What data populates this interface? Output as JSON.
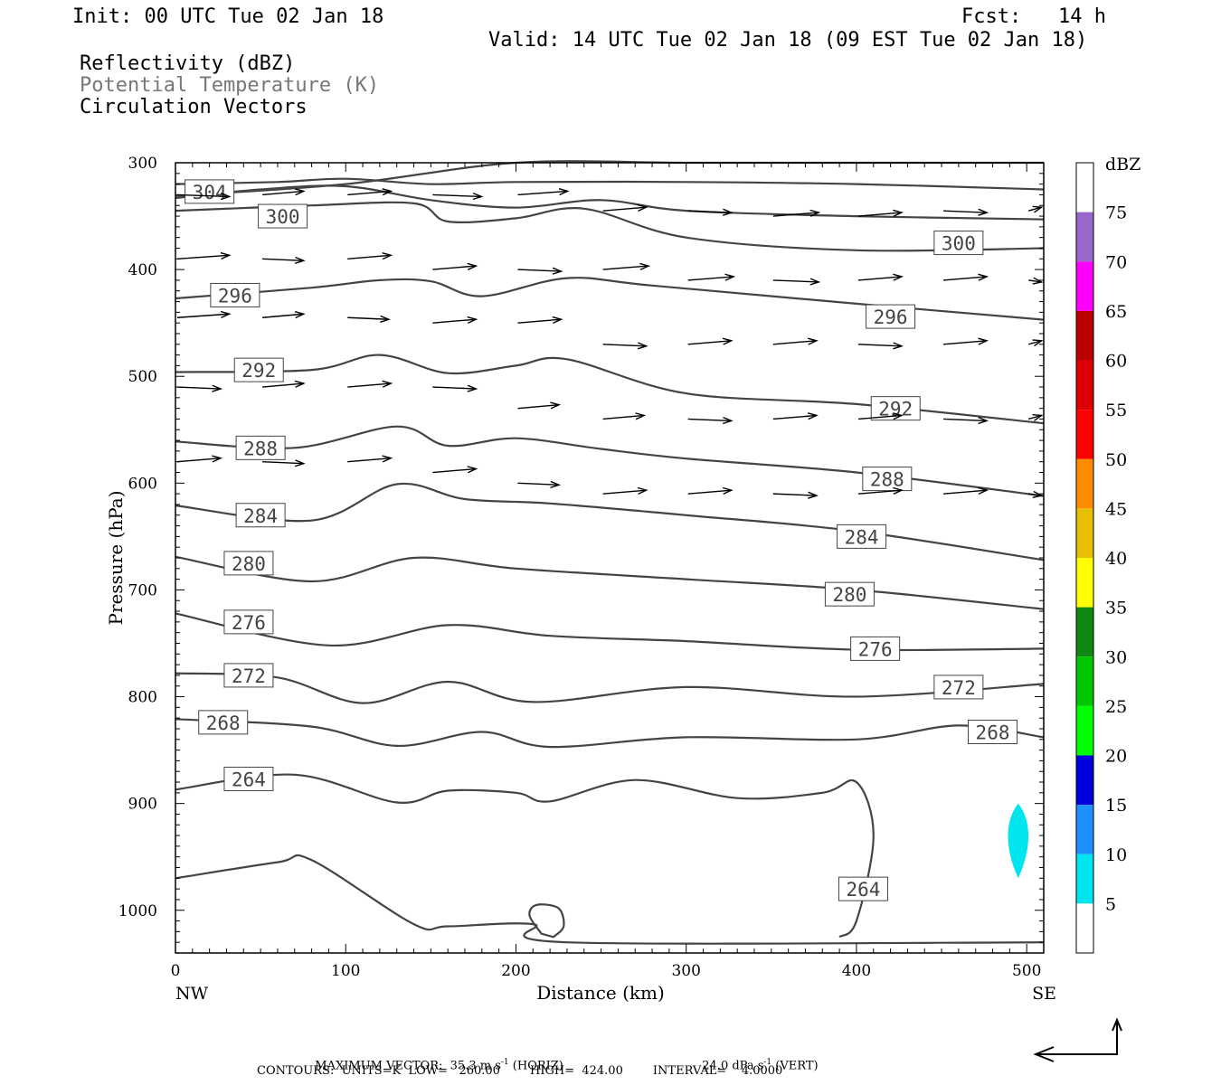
{
  "header": {
    "init": "Init: 00 UTC Tue 02 Jan 18",
    "fcst_label": "Fcst:",
    "fcst_value": "14 h",
    "valid": "Valid: 14 UTC Tue 02 Jan 18 (09 EST Tue 02 Jan 18)",
    "field1": "Reflectivity (dBZ)",
    "field2": "Potential Temperature (K)",
    "field3": "Circulation Vectors"
  },
  "footer": {
    "max_vector": "MAXIMUM VECTOR:  35.3 m s",
    "max_vector_exp": "-1",
    "max_vector_horiz": " (HORIZ)",
    "max_vector_vert": "24.0 dPa s",
    "max_vector_vert_exp": "-1",
    "max_vector_vert_tail": " (VERT)",
    "contours": "CONTOURS:  UNITS=K  LOW=   260.00        HIGH=  424.00        INTERVAL=    4.0000"
  },
  "colors": {
    "contour": "#444444",
    "axis": "#000000",
    "echo": "#00e5ee"
  },
  "chart_data": {
    "type": "cross-section",
    "xlabel": "Distance (km)",
    "ylabel": "Pressure (hPa)",
    "xlim": [
      0,
      510
    ],
    "ylim": [
      1040,
      300
    ],
    "x_ticks": [
      "0",
      "100",
      "200",
      "300",
      "400",
      "500"
    ],
    "y_ticks": [
      "300",
      "400",
      "500",
      "600",
      "700",
      "800",
      "900",
      "1000"
    ],
    "x_end_labels": {
      "left": "NW",
      "right": "SE"
    },
    "colorbar": {
      "unit": "dBZ",
      "labels": [
        "75",
        "70",
        "65",
        "60",
        "55",
        "50",
        "45",
        "40",
        "35",
        "30",
        "25",
        "20",
        "15",
        "10",
        "5"
      ],
      "colors": [
        "#ffffff",
        "#9966cc",
        "#ff00ff",
        "#bb0000",
        "#dd0000",
        "#ff0000",
        "#ff8c00",
        "#e6c000",
        "#ffff00",
        "#118811",
        "#00c800",
        "#00ff00",
        "#0000dd",
        "#1e90ff",
        "#00e5ee",
        "#ffffff"
      ]
    },
    "theta_contours": [
      {
        "level": 304,
        "label": "304",
        "points": [
          [
            0,
            331
          ],
          [
            100,
            320
          ],
          [
            200,
            300
          ],
          [
            300,
            300
          ],
          [
            400,
            300
          ],
          [
            510,
            300
          ]
        ],
        "label_at": [
          20,
          327
        ]
      },
      {
        "level": 300,
        "label": "300",
        "points": [
          [
            0,
            333
          ],
          [
            50,
            325
          ],
          [
            100,
            322
          ],
          [
            150,
            335
          ],
          [
            200,
            342
          ],
          [
            250,
            335
          ],
          [
            300,
            345
          ],
          [
            400,
            350
          ],
          [
            510,
            353
          ]
        ],
        "label_at": [
          460,
          375
        ]
      },
      {
        "level": 300.5,
        "label": "",
        "points": [
          [
            0,
            320
          ],
          [
            60,
            318
          ],
          [
            100,
            315
          ],
          [
            150,
            320
          ],
          [
            200,
            318
          ],
          [
            300,
            318
          ],
          [
            400,
            320
          ],
          [
            510,
            325
          ]
        ],
        "label_at": null
      },
      {
        "level": 300.7,
        "label": "300",
        "points": [
          [
            0,
            345
          ],
          [
            80,
            340
          ],
          [
            140,
            338
          ],
          [
            160,
            355
          ],
          [
            200,
            352
          ],
          [
            240,
            343
          ],
          [
            300,
            370
          ],
          [
            400,
            382
          ],
          [
            510,
            380
          ]
        ],
        "label_at": [
          63,
          350
        ]
      },
      {
        "level": 296,
        "label": "296",
        "points": [
          [
            0,
            427
          ],
          [
            80,
            417
          ],
          [
            120,
            410
          ],
          [
            150,
            411
          ],
          [
            180,
            425
          ],
          [
            230,
            408
          ],
          [
            280,
            415
          ],
          [
            400,
            432
          ],
          [
            510,
            447
          ]
        ],
        "label_at": [
          35,
          424
        ]
      },
      {
        "level": 296.5,
        "label": "296",
        "label_at": [
          420,
          444
        ],
        "points": []
      },
      {
        "level": 292,
        "label": "292",
        "points": [
          [
            0,
            496
          ],
          [
            80,
            494
          ],
          [
            120,
            480
          ],
          [
            160,
            497
          ],
          [
            200,
            490
          ],
          [
            230,
            484
          ],
          [
            300,
            516
          ],
          [
            400,
            526
          ],
          [
            510,
            544
          ]
        ],
        "label_at": [
          49,
          494
        ]
      },
      {
        "level": 292.5,
        "label": "292",
        "label_at": [
          423,
          530
        ],
        "points": []
      },
      {
        "level": 288,
        "label": "288",
        "points": [
          [
            0,
            561
          ],
          [
            70,
            567
          ],
          [
            130,
            547
          ],
          [
            160,
            565
          ],
          [
            200,
            558
          ],
          [
            250,
            568
          ],
          [
            300,
            577
          ],
          [
            400,
            590
          ],
          [
            510,
            612
          ]
        ],
        "label_at": [
          50,
          567
        ]
      },
      {
        "level": 288.5,
        "label": "288",
        "label_at": [
          418,
          596
        ],
        "points": []
      },
      {
        "level": 284,
        "label": "284",
        "points": [
          [
            0,
            621
          ],
          [
            80,
            635
          ],
          [
            130,
            601
          ],
          [
            170,
            615
          ],
          [
            220,
            619
          ],
          [
            300,
            630
          ],
          [
            400,
            645
          ],
          [
            510,
            672
          ]
        ],
        "label_at": [
          50,
          630
        ]
      },
      {
        "level": 284.5,
        "label": "284",
        "label_at": [
          403,
          650
        ],
        "points": []
      },
      {
        "level": 280,
        "label": "280",
        "points": [
          [
            0,
            669
          ],
          [
            80,
            692
          ],
          [
            140,
            670
          ],
          [
            200,
            680
          ],
          [
            300,
            690
          ],
          [
            400,
            700
          ],
          [
            510,
            718
          ]
        ],
        "label_at": [
          43,
          675
        ]
      },
      {
        "level": 280.5,
        "label": "280",
        "label_at": [
          396,
          704
        ],
        "points": []
      },
      {
        "level": 276,
        "label": "276",
        "points": [
          [
            0,
            722
          ],
          [
            90,
            752
          ],
          [
            160,
            733
          ],
          [
            220,
            743
          ],
          [
            300,
            748
          ],
          [
            400,
            756
          ],
          [
            510,
            755
          ]
        ],
        "label_at": [
          43,
          730
        ]
      },
      {
        "level": 276.5,
        "label": "276",
        "label_at": [
          411,
          755
        ],
        "points": []
      },
      {
        "level": 272,
        "label": "272",
        "points": [
          [
            0,
            778
          ],
          [
            60,
            782
          ],
          [
            110,
            806
          ],
          [
            160,
            786
          ],
          [
            210,
            805
          ],
          [
            300,
            791
          ],
          [
            400,
            800
          ],
          [
            510,
            788
          ]
        ],
        "label_at": [
          43,
          780
        ]
      },
      {
        "level": 272.5,
        "label": "272",
        "label_at": [
          460,
          791
        ],
        "points": []
      },
      {
        "level": 268,
        "label": "268",
        "points": [
          [
            0,
            821
          ],
          [
            80,
            828
          ],
          [
            130,
            846
          ],
          [
            180,
            833
          ],
          [
            220,
            847
          ],
          [
            300,
            838
          ],
          [
            400,
            840
          ],
          [
            460,
            827
          ],
          [
            510,
            838
          ]
        ],
        "label_at": [
          28,
          824
        ]
      },
      {
        "level": 268.5,
        "label": "268",
        "label_at": [
          480,
          833
        ],
        "points": []
      },
      {
        "level": 264,
        "label": "264",
        "points": [
          [
            0,
            887
          ],
          [
            70,
            873
          ],
          [
            130,
            899
          ],
          [
            160,
            888
          ],
          [
            200,
            890
          ],
          [
            220,
            898
          ],
          [
            270,
            878
          ],
          [
            330,
            895
          ],
          [
            380,
            890
          ],
          [
            400,
            880
          ],
          [
            410,
            930
          ],
          [
            400,
            1010
          ],
          [
            390,
            1025
          ]
        ],
        "label_at": [
          43,
          877
        ]
      },
      {
        "level": 264.5,
        "label": "264",
        "label_at": [
          404,
          980
        ],
        "points": []
      },
      {
        "level": 260,
        "label": "",
        "points": [
          [
            0,
            970
          ],
          [
            60,
            955
          ],
          [
            80,
            953
          ],
          [
            140,
            1013
          ],
          [
            160,
            1015
          ],
          [
            210,
            1013
          ],
          [
            230,
            1030
          ],
          [
            510,
            1030
          ]
        ],
        "label_at": null
      }
    ],
    "small_loop": {
      "points": [
        [
          215,
          1022
        ],
        [
          208,
          1005
        ],
        [
          212,
          995
        ],
        [
          225,
          998
        ],
        [
          228,
          1015
        ],
        [
          222,
          1025
        ]
      ]
    },
    "echoes": [
      {
        "dbz_min": 5,
        "dbz_max": 10,
        "x_center": 495,
        "p_top": 900,
        "p_bottom": 970
      }
    ],
    "vectors": [
      {
        "x": 0,
        "p": 330,
        "u": 48
      },
      {
        "x": 50,
        "p": 330,
        "u": 38
      },
      {
        "x": 100,
        "p": 330,
        "u": 40
      },
      {
        "x": 150,
        "p": 330,
        "u": 45
      },
      {
        "x": 200,
        "p": 330,
        "u": 46
      },
      {
        "x": 250,
        "p": 345,
        "u": 40
      },
      {
        "x": 300,
        "p": 345,
        "u": 40
      },
      {
        "x": 350,
        "p": 350,
        "u": 42
      },
      {
        "x": 400,
        "p": 350,
        "u": 40
      },
      {
        "x": 450,
        "p": 345,
        "u": 40
      },
      {
        "x": 500,
        "p": 345,
        "u": 12
      },
      {
        "x": 0,
        "p": 390,
        "u": 48
      },
      {
        "x": 50,
        "p": 390,
        "u": 38
      },
      {
        "x": 100,
        "p": 390,
        "u": 40
      },
      {
        "x": 150,
        "p": 400,
        "u": 40
      },
      {
        "x": 200,
        "p": 400,
        "u": 40
      },
      {
        "x": 250,
        "p": 400,
        "u": 42
      },
      {
        "x": 300,
        "p": 410,
        "u": 42
      },
      {
        "x": 350,
        "p": 410,
        "u": 42
      },
      {
        "x": 400,
        "p": 410,
        "u": 40
      },
      {
        "x": 450,
        "p": 410,
        "u": 40
      },
      {
        "x": 500,
        "p": 410,
        "u": 12
      },
      {
        "x": 0,
        "p": 445,
        "u": 48
      },
      {
        "x": 50,
        "p": 445,
        "u": 38
      },
      {
        "x": 100,
        "p": 445,
        "u": 38
      },
      {
        "x": 150,
        "p": 450,
        "u": 40
      },
      {
        "x": 200,
        "p": 450,
        "u": 40
      },
      {
        "x": 250,
        "p": 470,
        "u": 40
      },
      {
        "x": 300,
        "p": 470,
        "u": 40
      },
      {
        "x": 350,
        "p": 470,
        "u": 40
      },
      {
        "x": 400,
        "p": 470,
        "u": 40
      },
      {
        "x": 450,
        "p": 470,
        "u": 40
      },
      {
        "x": 500,
        "p": 470,
        "u": 12
      },
      {
        "x": 0,
        "p": 510,
        "u": 40
      },
      {
        "x": 50,
        "p": 510,
        "u": 38
      },
      {
        "x": 100,
        "p": 510,
        "u": 40
      },
      {
        "x": 150,
        "p": 510,
        "u": 40
      },
      {
        "x": 200,
        "p": 530,
        "u": 38
      },
      {
        "x": 250,
        "p": 540,
        "u": 38
      },
      {
        "x": 300,
        "p": 540,
        "u": 40
      },
      {
        "x": 350,
        "p": 540,
        "u": 40
      },
      {
        "x": 400,
        "p": 540,
        "u": 40
      },
      {
        "x": 450,
        "p": 540,
        "u": 40
      },
      {
        "x": 500,
        "p": 540,
        "u": 12
      },
      {
        "x": 0,
        "p": 580,
        "u": 40
      },
      {
        "x": 50,
        "p": 580,
        "u": 38
      },
      {
        "x": 100,
        "p": 580,
        "u": 40
      },
      {
        "x": 150,
        "p": 590,
        "u": 40
      },
      {
        "x": 200,
        "p": 600,
        "u": 38
      },
      {
        "x": 250,
        "p": 610,
        "u": 40
      },
      {
        "x": 300,
        "p": 610,
        "u": 40
      },
      {
        "x": 350,
        "p": 610,
        "u": 40
      },
      {
        "x": 400,
        "p": 610,
        "u": 40
      },
      {
        "x": 450,
        "p": 610,
        "u": 40
      },
      {
        "x": 500,
        "p": 610,
        "u": 12
      }
    ]
  }
}
